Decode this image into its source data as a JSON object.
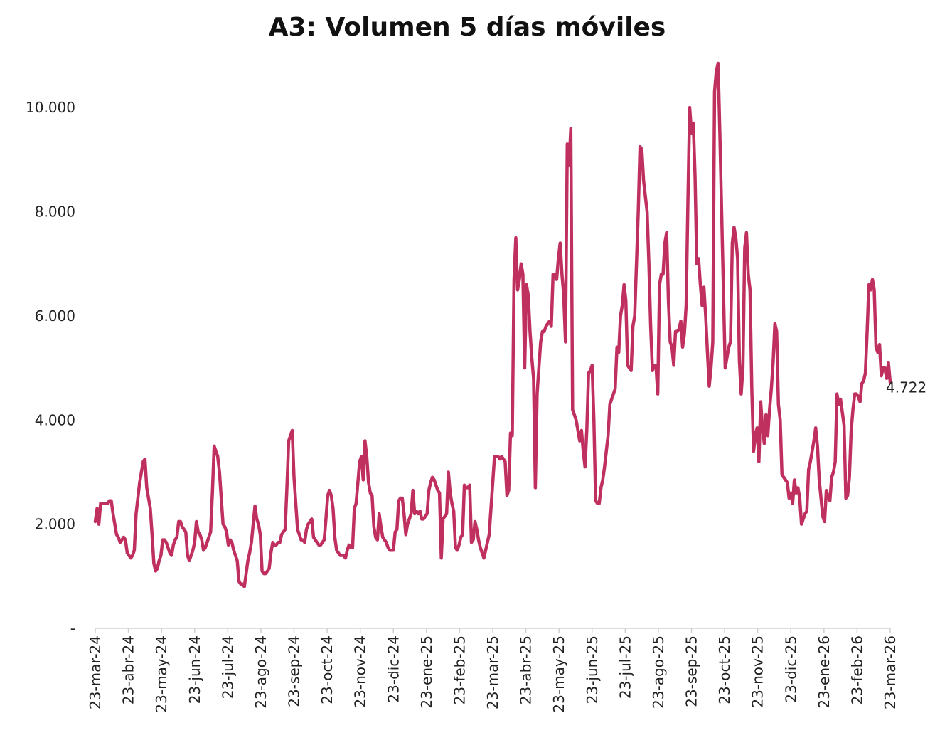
{
  "chart_data": {
    "type": "line",
    "title": "A3: Volumen 5 días móviles",
    "xlabel": "",
    "ylabel": "",
    "ylim": [
      0,
      11000
    ],
    "y_ticks": [
      {
        "value": 0,
        "label": "-"
      },
      {
        "value": 2000,
        "label": "2.000"
      },
      {
        "value": 4000,
        "label": "4.000"
      },
      {
        "value": 6000,
        "label": "6.000"
      },
      {
        "value": 8000,
        "label": "8.000"
      },
      {
        "value": 10000,
        "label": "10.000"
      }
    ],
    "x_tick_labels": [
      "23-mar-24",
      "23-abr-24",
      "23-may-24",
      "23-jun-24",
      "23-jul-24",
      "23-ago-24",
      "23-sep-24",
      "23-oct-24",
      "23-nov-24",
      "23-dic-24",
      "23-ene-25",
      "23-feb-25",
      "23-mar-25",
      "23-abr-25",
      "23-may-25",
      "23-jun-25",
      "23-jul-25",
      "23-ago-25",
      "23-sep-25",
      "23-oct-25",
      "23-nov-25",
      "23-dic-25",
      "23-ene-26",
      "23-feb-26",
      "23-mar-26"
    ],
    "grid": false,
    "legend": "none",
    "end_label": "4.722",
    "series": [
      {
        "color": "#c0305f",
        "values": [
          2050,
          2300,
          2000,
          2400,
          2400,
          2400,
          2400,
          2400,
          2450,
          2450,
          2200,
          2000,
          1800,
          1750,
          1650,
          1700,
          1750,
          1700,
          1450,
          1400,
          1350,
          1400,
          1500,
          2200,
          2500,
          2800,
          3000,
          3200,
          3250,
          2700,
          2500,
          2300,
          1800,
          1250,
          1100,
          1150,
          1300,
          1400,
          1700,
          1700,
          1650,
          1550,
          1450,
          1400,
          1600,
          1700,
          1750,
          2050,
          2050,
          1950,
          1900,
          1850,
          1400,
          1300,
          1400,
          1500,
          1650,
          2050,
          1850,
          1800,
          1700,
          1500,
          1550,
          1650,
          1750,
          1850,
          2600,
          3500,
          3400,
          3300,
          3000,
          2500,
          2000,
          1950,
          1850,
          1600,
          1700,
          1650,
          1500,
          1400,
          1300,
          900,
          850,
          850,
          800,
          1050,
          1300,
          1450,
          1650,
          2000,
          2350,
          2100,
          2000,
          1800,
          1100,
          1050,
          1050,
          1100,
          1150,
          1450,
          1650,
          1600,
          1600,
          1650,
          1650,
          1800,
          1850,
          1900,
          2700,
          3600,
          3700,
          3800,
          2900,
          2400,
          1900,
          1800,
          1700,
          1700,
          1650,
          1900,
          2000,
          2050,
          2100,
          1750,
          1700,
          1650,
          1600,
          1600,
          1650,
          1700,
          2100,
          2550,
          2650,
          2550,
          2300,
          1750,
          1500,
          1450,
          1400,
          1400,
          1400,
          1350,
          1500,
          1600,
          1550,
          1550,
          2300,
          2400,
          2800,
          3200,
          3300,
          2850,
          3600,
          3300,
          2800,
          2600,
          2550,
          1950,
          1750,
          1700,
          2200,
          1950,
          1750,
          1700,
          1650,
          1550,
          1500,
          1500,
          1500,
          1850,
          1900,
          2450,
          2500,
          2500,
          2200,
          1800,
          2000,
          2100,
          2200,
          2650,
          2200,
          2250,
          2200,
          2250,
          2100,
          2100,
          2150,
          2200,
          2650,
          2800,
          2900,
          2850,
          2750,
          2650,
          2600,
          1350,
          2100,
          2150,
          2200,
          3000,
          2600,
          2400,
          2250,
          1550,
          1500,
          1600,
          1750,
          1800,
          2750,
          2700,
          2700,
          2750,
          1650,
          1700,
          2050,
          1900,
          1700,
          1550,
          1450,
          1350,
          1500,
          1650,
          1800,
          2300,
          2800,
          3300,
          3300,
          3300,
          3250,
          3300,
          3250,
          3200,
          2550,
          2650,
          3750,
          3700,
          6700,
          7500,
          6500,
          6700,
          7000,
          6800,
          5000,
          6600,
          6400,
          5700,
          5200,
          4800,
          2700,
          4500,
          5000,
          5500,
          5700,
          5700,
          5800,
          5850,
          5900,
          5800,
          6800,
          6800,
          6700,
          7100,
          7400,
          6800,
          6400,
          5500,
          9300,
          8900,
          9600,
          4200,
          4100,
          4000,
          3800,
          3600,
          3800,
          3400,
          3100,
          3800,
          4900,
          4950,
          5050,
          4000,
          2450,
          2400,
          2400,
          2700,
          2850,
          3100,
          3400,
          3700,
          4300,
          4400,
          4500,
          4600,
          5400,
          5300,
          6000,
          6200,
          6600,
          6300,
          5050,
          5000,
          4950,
          5800,
          6000,
          7000,
          8000,
          9250,
          9200,
          8600,
          8300,
          8000,
          7000,
          5800,
          4950,
          5050,
          5050,
          4500,
          6600,
          6800,
          6800,
          7400,
          7600,
          6300,
          5500,
          5400,
          5050,
          5700,
          5700,
          5750,
          5900,
          5400,
          5650,
          6200,
          8200,
          10000,
          9500,
          9700,
          8700,
          7000,
          7100,
          6600,
          6200,
          6550,
          6000,
          5300,
          4650,
          5000,
          5500,
          10300,
          10700,
          10850,
          9500,
          8000,
          6500,
          5000,
          5200,
          5400,
          5500,
          7400,
          7700,
          7500,
          7100,
          5150,
          4500,
          5000,
          7300,
          7600,
          6800,
          6500,
          4600,
          3400,
          3700,
          3850,
          3200,
          4350,
          3850,
          3550,
          4100,
          3700,
          4200,
          4600,
          5100,
          5850,
          5700,
          4300,
          4000,
          2950,
          2900,
          2850,
          2800,
          2500,
          2600,
          2400,
          2850,
          2600,
          2700,
          2500,
          2000,
          2100,
          2200,
          2250,
          3050,
          3200,
          3400,
          3600,
          3850,
          3500,
          2850,
          2500,
          2150,
          2050,
          2650,
          2500,
          2450,
          2900,
          3000,
          3200,
          4500,
          4300,
          4400,
          4150,
          3900,
          2500,
          2550,
          2900,
          3800,
          4200,
          4500,
          4500,
          4450,
          4350,
          4700,
          4750,
          4900,
          5700,
          6600,
          6500,
          6700,
          6500,
          5400,
          5300,
          5450,
          4850,
          5000,
          5000,
          4800,
          5100,
          4722
        ]
      }
    ]
  }
}
